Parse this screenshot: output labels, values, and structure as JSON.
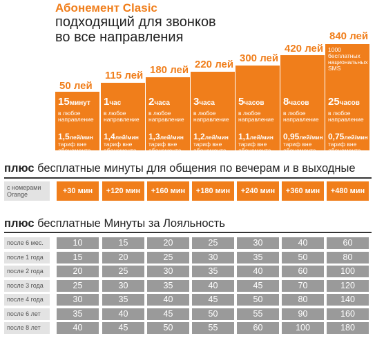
{
  "header": {
    "title": "Абонемент Clasic",
    "subtitle_line1": "подходящий для звонков",
    "subtitle_line2": "во все направления"
  },
  "plans": [
    {
      "price": "50 лей",
      "minutes_num": "15",
      "minutes_unit": "минут",
      "direction": "в любое направление",
      "rate_num": "1,5",
      "rate_unit": "лей/мин",
      "tariff": "тариф вне абонемента"
    },
    {
      "price": "115 лей",
      "minutes_num": "1",
      "minutes_unit": "час",
      "direction": "в любое направление",
      "rate_num": "1,4",
      "rate_unit": "лей/мин",
      "tariff": "тариф вне абонемента"
    },
    {
      "price": "180 лей",
      "minutes_num": "2",
      "minutes_unit": "часа",
      "direction": "в любое направление",
      "rate_num": "1,3",
      "rate_unit": "лей/мин",
      "tariff": "тариф вне абонемента"
    },
    {
      "price": "220 лей",
      "minutes_num": "3",
      "minutes_unit": "часа",
      "direction": "в любое направление",
      "rate_num": "1,2",
      "rate_unit": "лей/мин",
      "tariff": "тариф вне абонемента"
    },
    {
      "price": "300 лей",
      "minutes_num": "5",
      "minutes_unit": "часов",
      "direction": "в любое направление",
      "rate_num": "1,1",
      "rate_unit": "лей/мин",
      "tariff": "тариф вне абонемента"
    },
    {
      "price": "420 лей",
      "minutes_num": "8",
      "minutes_unit": "часов",
      "direction": "в любое направление",
      "rate_num": "0,95",
      "rate_unit": "лей/мин",
      "tariff": "тариф вне абонемента"
    },
    {
      "price": "840 лей",
      "sms": "1000 бесплатных национальных SMS",
      "minutes_num": "25",
      "minutes_unit": "часов",
      "direction": "в любое направление",
      "rate_num": "0,75",
      "rate_unit": "лей/мин",
      "tariff": "тариф вне абонемента"
    }
  ],
  "bonus_section": {
    "title_bold": "плюс",
    "title_rest": " бесплатные минуты для общения по вечерам и в выходные",
    "row_label": "с номерами Orange",
    "chips": [
      "+30 мин",
      "+120 мин",
      "+160 мин",
      "+180 мин",
      "+240 мин",
      "+360 мин",
      "+480 мин"
    ]
  },
  "loyalty_section": {
    "title_bold": "плюс",
    "title_rest": " бесплатные Минуты за Лояльность",
    "rows": [
      {
        "label": "после 6 мес.",
        "values": [
          "10",
          "15",
          "20",
          "25",
          "30",
          "40",
          "60"
        ]
      },
      {
        "label": "после 1 года",
        "values": [
          "15",
          "20",
          "25",
          "30",
          "35",
          "50",
          "80"
        ]
      },
      {
        "label": "после 2 года",
        "values": [
          "20",
          "25",
          "30",
          "35",
          "40",
          "60",
          "100"
        ]
      },
      {
        "label": "после 3 года",
        "values": [
          "25",
          "30",
          "35",
          "40",
          "45",
          "70",
          "120"
        ]
      },
      {
        "label": "после 4 года",
        "values": [
          "30",
          "35",
          "40",
          "45",
          "50",
          "80",
          "140"
        ]
      },
      {
        "label": "после 6 лет",
        "values": [
          "35",
          "40",
          "45",
          "50",
          "55",
          "90",
          "160"
        ]
      },
      {
        "label": "после 8 лет",
        "values": [
          "40",
          "45",
          "50",
          "55",
          "60",
          "100",
          "180"
        ]
      }
    ]
  },
  "colors": {
    "accent": "#f07e1b",
    "cell_gray": "#9a9a9a",
    "label_gray": "#e3e3e3"
  }
}
